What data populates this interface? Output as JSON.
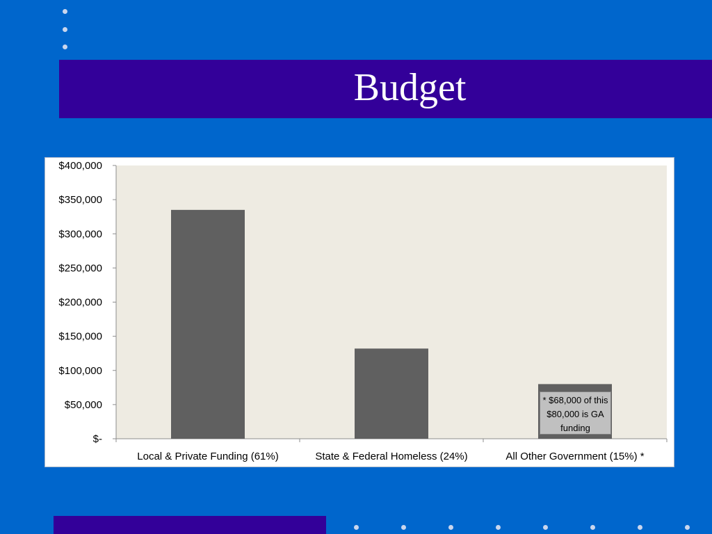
{
  "slide": {
    "title": "Budget"
  },
  "colors": {
    "background": "#0066cc",
    "band": "#330099",
    "bar": "#606060",
    "plot_area": "#eeebe2"
  },
  "chart_data": {
    "type": "bar",
    "categories": [
      "Local & Private Funding (61%)",
      "State & Federal Homeless (24%)",
      "All Other Government (15%) *"
    ],
    "values": [
      335000,
      132000,
      80000
    ],
    "ylim": [
      0,
      400000
    ],
    "ytick_values": [
      0,
      50000,
      100000,
      150000,
      200000,
      250000,
      300000,
      350000,
      400000
    ],
    "ytick_labels": [
      "$-",
      "$50,000",
      "$100,000",
      "$150,000",
      "$200,000",
      "$250,000",
      "$300,000",
      "$350,000",
      "$400,000"
    ],
    "grid": false,
    "annotation": {
      "category": "All Other Government (15%) *",
      "text": "* $68,000 of this $80,000 is GA funding"
    }
  }
}
